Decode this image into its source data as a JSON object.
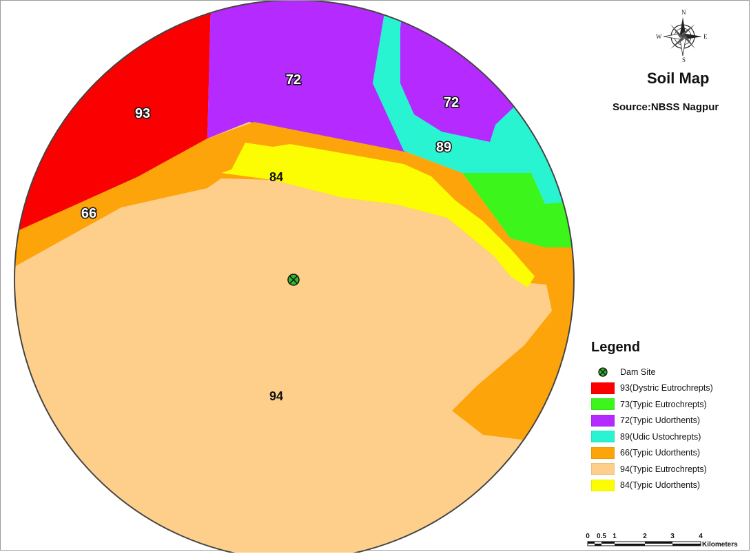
{
  "map": {
    "title": "Soil Map",
    "source": "Source:NBSS Nagpur",
    "compass": {
      "north": "N",
      "south": "S",
      "east": "E",
      "west": "W"
    }
  },
  "zone_labels": {
    "z93": "93",
    "z72a": "72",
    "z72b": "72",
    "z89": "89",
    "z84": "84",
    "z66": "66",
    "z94": "94"
  },
  "colors": {
    "red": "#fb0000",
    "green": "#3cf51a",
    "purple": "#b52aff",
    "cyan": "#28f4d2",
    "orange": "#fda40a",
    "peach": "#fdcf8b",
    "yellow": "#fcfd03",
    "dam": "#2fb72f"
  },
  "legend": {
    "title": "Legend",
    "dam_label": "Dam Site",
    "items": [
      {
        "label": "93(Dystric Eutrochrepts)",
        "color": "#fb0000"
      },
      {
        "label": "73(Typic Eutrochrepts)",
        "color": "#3cf51a"
      },
      {
        "label": "72(Typic Udorthents)",
        "color": "#b52aff"
      },
      {
        "label": "89(Udic Ustochrepts)",
        "color": "#28f4d2"
      },
      {
        "label": "66(Typic Udorthents)",
        "color": "#fda40a"
      },
      {
        "label": "94(Typic Eutrochrepts)",
        "color": "#fdcf8b"
      },
      {
        "label": "84(Typic Udorthents)",
        "color": "#fcfd03"
      }
    ]
  },
  "scale": {
    "ticks": [
      "0",
      "0.5",
      "1",
      "2",
      "3",
      "4"
    ],
    "unit": "Kilometers"
  }
}
